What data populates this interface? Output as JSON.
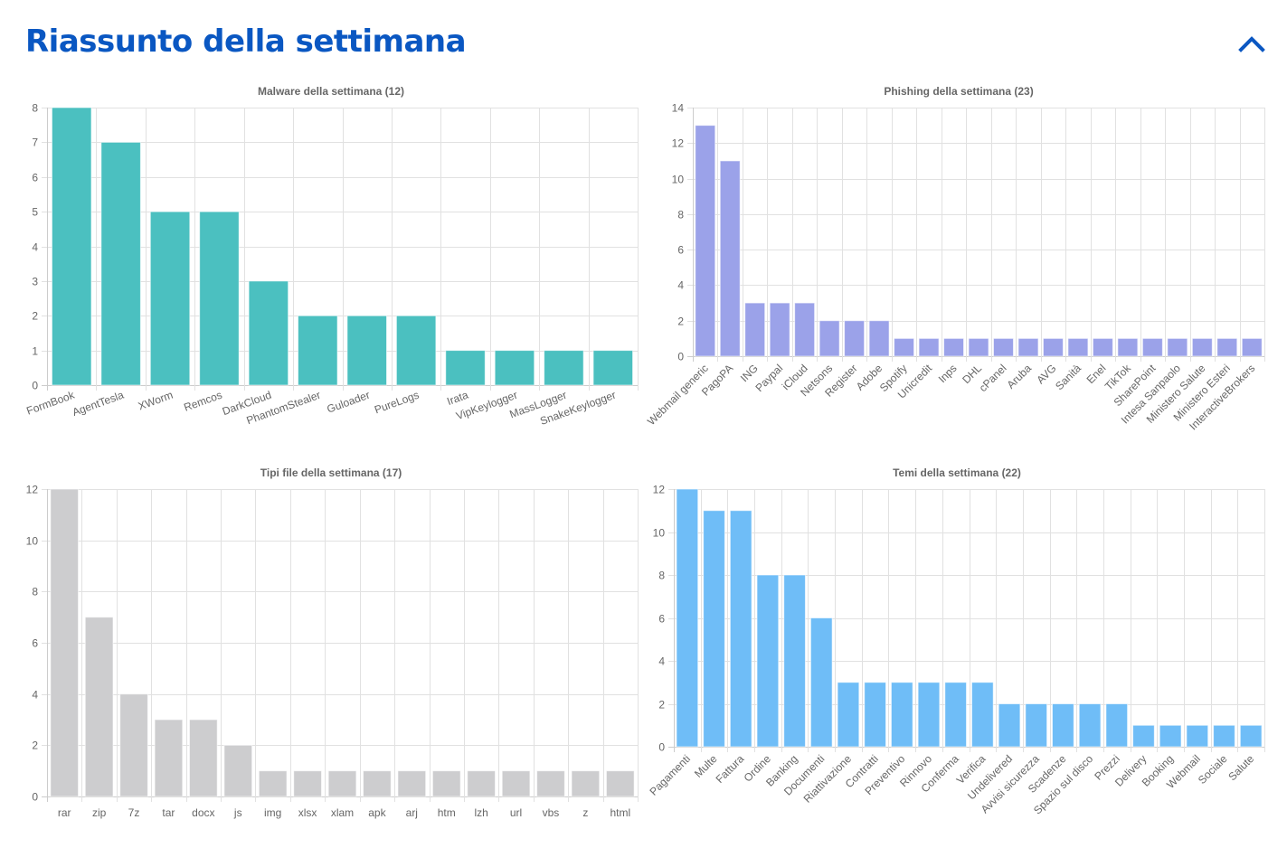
{
  "header": {
    "title": "Riassunto della settimana",
    "collapse_icon": "chevron-up-icon",
    "accent_color": "#0a57c2"
  },
  "chart_data": [
    {
      "type": "bar",
      "title": "Malware della settimana (12)",
      "xlabel": "",
      "ylabel": "",
      "ylim": [
        0,
        8
      ],
      "yticks": [
        0,
        1,
        2,
        3,
        4,
        5,
        6,
        7,
        8
      ],
      "grid": true,
      "rotate_labels": true,
      "color": "#4bc0c0",
      "categories": [
        "FormBook",
        "AgentTesla",
        "XWorm",
        "Remcos",
        "DarkCloud",
        "PhantomStealer",
        "Guloader",
        "PureLogs",
        "Irata",
        "VipKeylogger",
        "MassLogger",
        "SnakeKeylogger"
      ],
      "values": [
        8,
        7,
        5,
        5,
        3,
        2,
        2,
        2,
        1,
        1,
        1,
        1
      ]
    },
    {
      "type": "bar",
      "title": "Phishing della settimana (23)",
      "xlabel": "",
      "ylabel": "",
      "ylim": [
        0,
        14
      ],
      "yticks": [
        0,
        2,
        4,
        6,
        8,
        10,
        12,
        14
      ],
      "grid": true,
      "rotate_labels": true,
      "color": "#9ba2e9",
      "categories": [
        "Webmail generic",
        "PagoPA",
        "ING",
        "Paypal",
        "iCloud",
        "Netsons",
        "Register",
        "Adobe",
        "Spotify",
        "Unicredit",
        "Inps",
        "DHL",
        "cPanel",
        "Aruba",
        "AVG",
        "Sanità",
        "Enel",
        "TikTok",
        "SharePoint",
        "Intesa Sanpaolo",
        "Ministero Salute",
        "Ministero Esteri",
        "InteractiveBrokers"
      ],
      "values": [
        13,
        11,
        3,
        3,
        3,
        2,
        2,
        2,
        1,
        1,
        1,
        1,
        1,
        1,
        1,
        1,
        1,
        1,
        1,
        1,
        1,
        1,
        1
      ]
    },
    {
      "type": "bar",
      "title": "Tipi file della settimana (17)",
      "xlabel": "",
      "ylabel": "",
      "ylim": [
        0,
        12
      ],
      "yticks": [
        0,
        2,
        4,
        6,
        8,
        10,
        12
      ],
      "grid": true,
      "rotate_labels": false,
      "color": "#cdcdcf",
      "categories": [
        "rar",
        "zip",
        "7z",
        "tar",
        "docx",
        "js",
        "img",
        "xlsx",
        "xlam",
        "apk",
        "arj",
        "htm",
        "lzh",
        "url",
        "vbs",
        "z",
        "html"
      ],
      "values": [
        12,
        7,
        4,
        3,
        3,
        2,
        1,
        1,
        1,
        1,
        1,
        1,
        1,
        1,
        1,
        1,
        1
      ]
    },
    {
      "type": "bar",
      "title": "Temi della settimana (22)",
      "xlabel": "",
      "ylabel": "",
      "ylim": [
        0,
        12
      ],
      "yticks": [
        0,
        2,
        4,
        6,
        8,
        10,
        12
      ],
      "grid": true,
      "rotate_labels": true,
      "color": "#6fbdf7",
      "categories": [
        "Pagamenti",
        "Multe",
        "Fattura",
        "Ordine",
        "Banking",
        "Documenti",
        "Riattivazione",
        "Contratti",
        "Preventivo",
        "Rinnovo",
        "Conferma",
        "Verifica",
        "Undelivered",
        "Avvisi sicurezza",
        "Scadenze",
        "Spazio sul disco",
        "Prezzi",
        "Delivery",
        "Booking",
        "Webmail",
        "Sociale",
        "Salute"
      ],
      "values": [
        12,
        11,
        11,
        8,
        8,
        6,
        3,
        3,
        3,
        3,
        3,
        3,
        2,
        2,
        2,
        2,
        2,
        1,
        1,
        1,
        1,
        1
      ]
    }
  ]
}
